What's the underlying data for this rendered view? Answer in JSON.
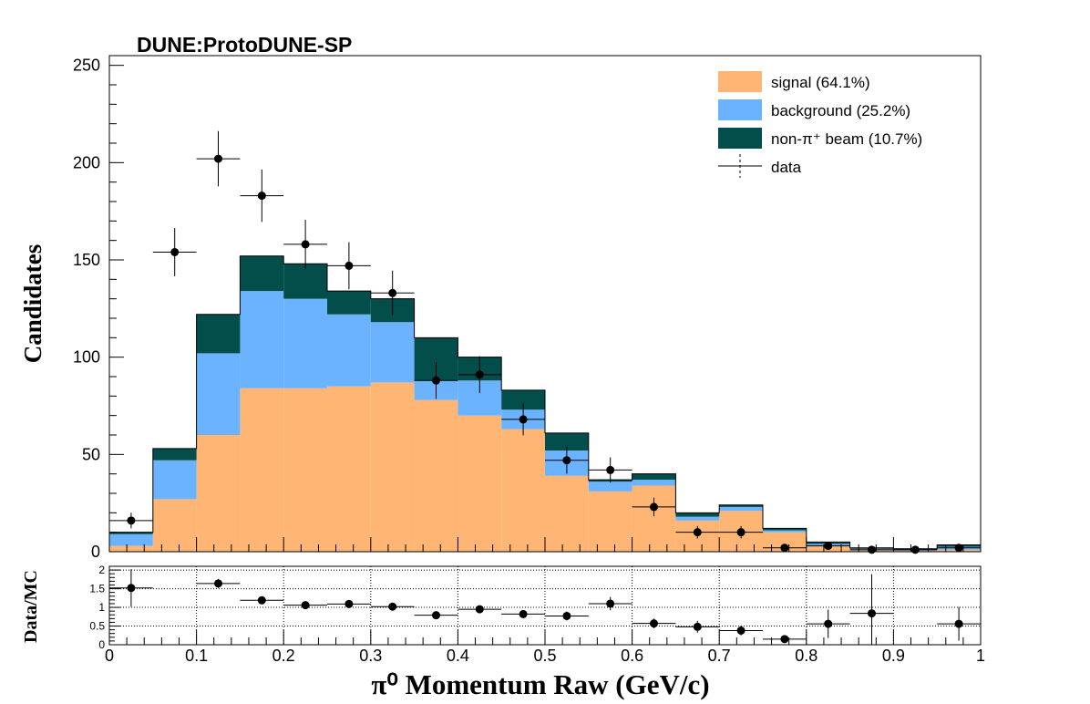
{
  "chart_data": [
    {
      "type": "bar",
      "stacked": true,
      "title": "DUNE:ProtoDUNE-SP",
      "xlabel": "π⁰ Momentum Raw (GeV/c)",
      "ylabel": "Candidates",
      "xlim": [
        0,
        1
      ],
      "ylim": [
        0,
        255
      ],
      "bin_edges": [
        0,
        0.05,
        0.1,
        0.15,
        0.2,
        0.25,
        0.3,
        0.35,
        0.4,
        0.45,
        0.5,
        0.55,
        0.6,
        0.65,
        0.7,
        0.75,
        0.8,
        0.85,
        0.9,
        0.95,
        1.0
      ],
      "x_ticks": [
        "0",
        "0.1",
        "0.2",
        "0.3",
        "0.4",
        "0.5",
        "0.6",
        "0.7",
        "0.8",
        "0.9",
        "1"
      ],
      "y_ticks": [
        "0",
        "50",
        "100",
        "150",
        "200",
        "250"
      ],
      "legend_position": "top-right",
      "series": [
        {
          "name": "signal (64.1%)",
          "color": "#ffb574",
          "values": [
            3,
            27,
            60,
            84,
            84,
            85,
            87,
            78,
            70,
            63,
            39,
            31,
            34,
            16,
            21,
            10,
            3,
            1,
            0.5,
            1
          ]
        },
        {
          "name": "background (25.2%)",
          "color": "#6cb3ff",
          "values": [
            6,
            20,
            42,
            50,
            46,
            37,
            31,
            10,
            18,
            10,
            13,
            5,
            3,
            2,
            2,
            1,
            1,
            0.5,
            0.5,
            1.5
          ]
        },
        {
          "name": "non-π⁺ beam (10.7%)",
          "color": "#034d4a",
          "values": [
            1,
            6,
            20,
            18,
            18,
            12,
            12,
            22,
            12,
            10,
            9,
            1,
            3,
            2,
            1,
            1,
            1,
            0.5,
            0.5,
            1
          ]
        }
      ],
      "data": {
        "name": "data",
        "x": [
          0.025,
          0.075,
          0.125,
          0.175,
          0.225,
          0.275,
          0.325,
          0.375,
          0.425,
          0.475,
          0.525,
          0.575,
          0.625,
          0.675,
          0.725,
          0.775,
          0.825,
          0.875,
          0.925,
          0.975
        ],
        "y": [
          16,
          154,
          202,
          183,
          158,
          147,
          133,
          88,
          91,
          68,
          47,
          42,
          23,
          10,
          10,
          2,
          3,
          1,
          1,
          2
        ],
        "yerr": [
          4,
          12.4,
          14.2,
          13.5,
          12.6,
          12.1,
          11.5,
          9.4,
          9.5,
          8.2,
          6.9,
          6.5,
          4.8,
          3.2,
          3.2,
          1.4,
          1.7,
          1,
          1,
          1.4
        ]
      }
    },
    {
      "type": "scatter",
      "xlabel": "π⁰ Momentum Raw (GeV/c)",
      "ylabel": "Data/MC",
      "xlim": [
        0,
        1
      ],
      "ylim": [
        0,
        2.1
      ],
      "grid": true,
      "y_ticks": [
        "0",
        "0.5",
        "1",
        "1.5",
        "2"
      ],
      "x": [
        0.025,
        0.125,
        0.175,
        0.225,
        0.275,
        0.325,
        0.375,
        0.425,
        0.475,
        0.525,
        0.575,
        0.625,
        0.675,
        0.725,
        0.775,
        0.825,
        0.875,
        0.975
      ],
      "y": [
        1.52,
        1.64,
        1.19,
        1.06,
        1.09,
        1.02,
        0.79,
        0.95,
        0.82,
        0.77,
        1.1,
        0.57,
        0.48,
        0.38,
        0.15,
        0.56,
        0.84,
        0.56
      ],
      "yerr": [
        0.5,
        0.12,
        0.1,
        0.09,
        0.09,
        0.1,
        0.09,
        0.1,
        0.1,
        0.12,
        0.18,
        0.13,
        0.16,
        0.13,
        0.1,
        0.38,
        1.05,
        0.45
      ]
    }
  ]
}
